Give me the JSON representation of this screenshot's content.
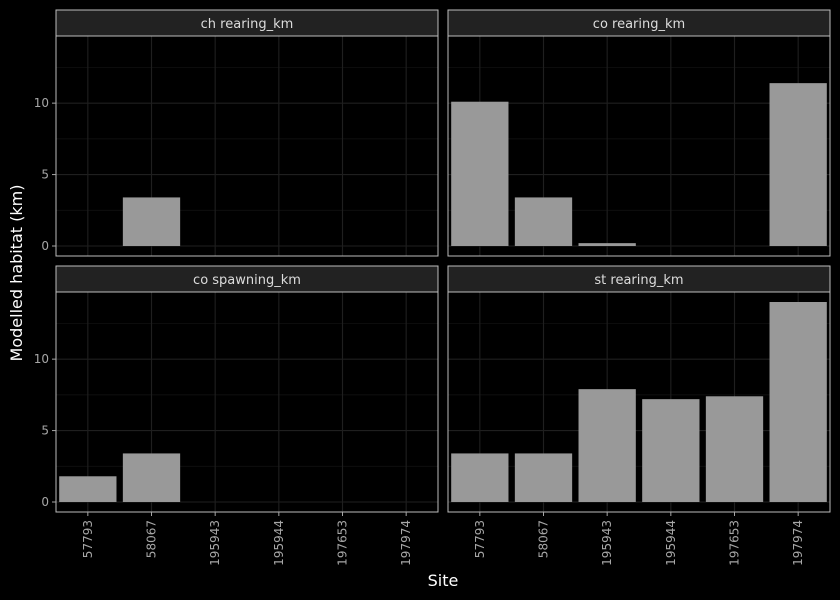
{
  "chart_data": {
    "type": "bar",
    "facet": "wrap",
    "xlabel": "Site",
    "ylabel": "Modelled habitat (km)",
    "categories": [
      "57793",
      "58067",
      "195943",
      "195944",
      "197653",
      "197974"
    ],
    "y_ticks": [
      0,
      5,
      10
    ],
    "ylim": [
      -0.7,
      14.7
    ],
    "grid": true,
    "bar_color": "#999999",
    "panels": [
      {
        "title": "ch rearing_km",
        "values": [
          0,
          3.4,
          0,
          0,
          0,
          0
        ]
      },
      {
        "title": "co rearing_km",
        "values": [
          10.1,
          3.4,
          0.2,
          0,
          0,
          11.4
        ]
      },
      {
        "title": "co spawning_km",
        "values": [
          1.8,
          3.4,
          0,
          0,
          0,
          0
        ]
      },
      {
        "title": "st rearing_km",
        "values": [
          3.4,
          3.4,
          7.9,
          7.2,
          7.4,
          14.0
        ]
      }
    ]
  }
}
